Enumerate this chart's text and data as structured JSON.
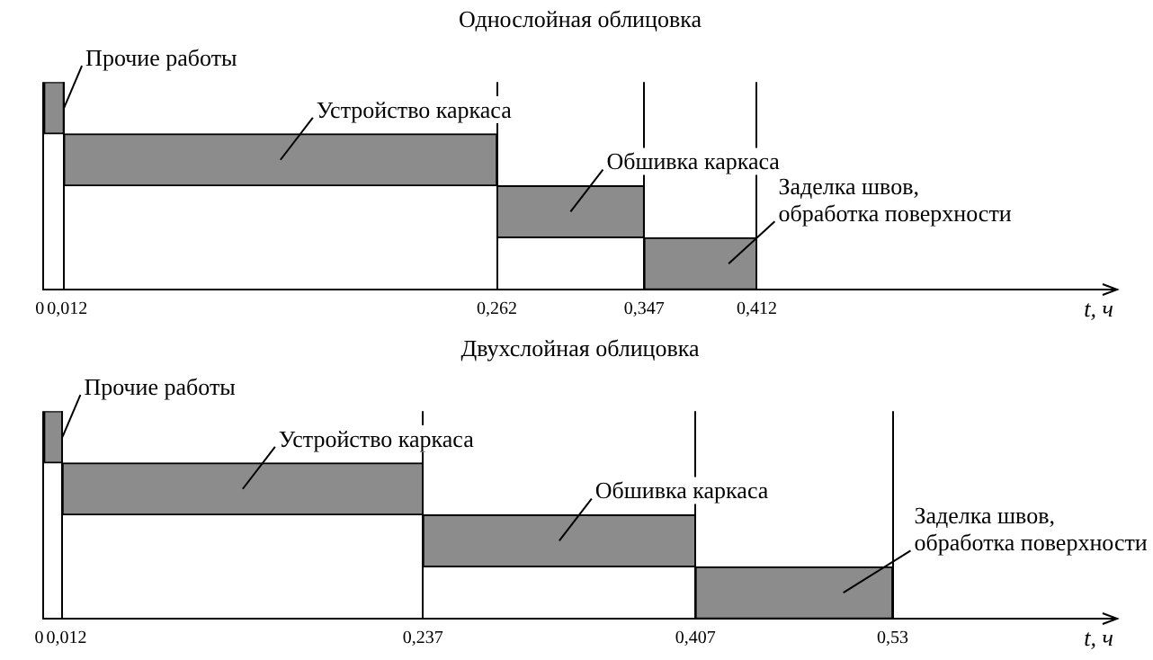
{
  "chart_data": [
    {
      "type": "bar",
      "orientation": "horizontal",
      "title": "Однослойная облицовка",
      "xlabel": "t, ч",
      "categories": [
        null,
        null,
        null,
        null
      ],
      "annotations": [
        "Прочие работы",
        "Устройство каркаса",
        "Обшивка каркаса",
        "Заделка швов,\nобработка поверхности"
      ],
      "base": [
        0,
        0.012,
        0.262,
        0.347
      ],
      "values": [
        0.012,
        0.25,
        0.085,
        0.065
      ],
      "color": "#8c8c8c",
      "xlim": [
        0,
        0.62
      ],
      "xticks": [
        0,
        {
          "value": 0.012,
          "label": "0,012"
        },
        {
          "value": 0.262,
          "label": "0,262"
        },
        {
          "value": 0.347,
          "label": "0,347"
        },
        {
          "value": 0.412,
          "label": "0,412"
        }
      ],
      "grid": "x",
      "legend": false,
      "tick_labels": "x"
    },
    {
      "type": "bar",
      "orientation": "horizontal",
      "title": "Двухслойная облицовка",
      "xlabel": "t, ч",
      "categories": [
        null,
        null,
        null,
        null
      ],
      "annotations": [
        "Прочие работы",
        "Устройство каркаса",
        "Обшивка каркаса",
        "Заделка швов,\nобработка поверхности"
      ],
      "base": [
        0,
        0.012,
        0.237,
        0.407
      ],
      "values": [
        0.012,
        0.225,
        0.17,
        0.123
      ],
      "color": "#8c8c8c",
      "xlim": [
        0,
        0.67
      ],
      "xticks": [
        0,
        {
          "value": 0.012,
          "label": "0,012"
        },
        {
          "value": 0.237,
          "label": "0,237"
        },
        {
          "value": 0.407,
          "label": "0,407"
        },
        {
          "value": 0.53,
          "label": "0,53"
        }
      ],
      "grid": "x",
      "legend": false,
      "tick_labels": "x"
    }
  ]
}
